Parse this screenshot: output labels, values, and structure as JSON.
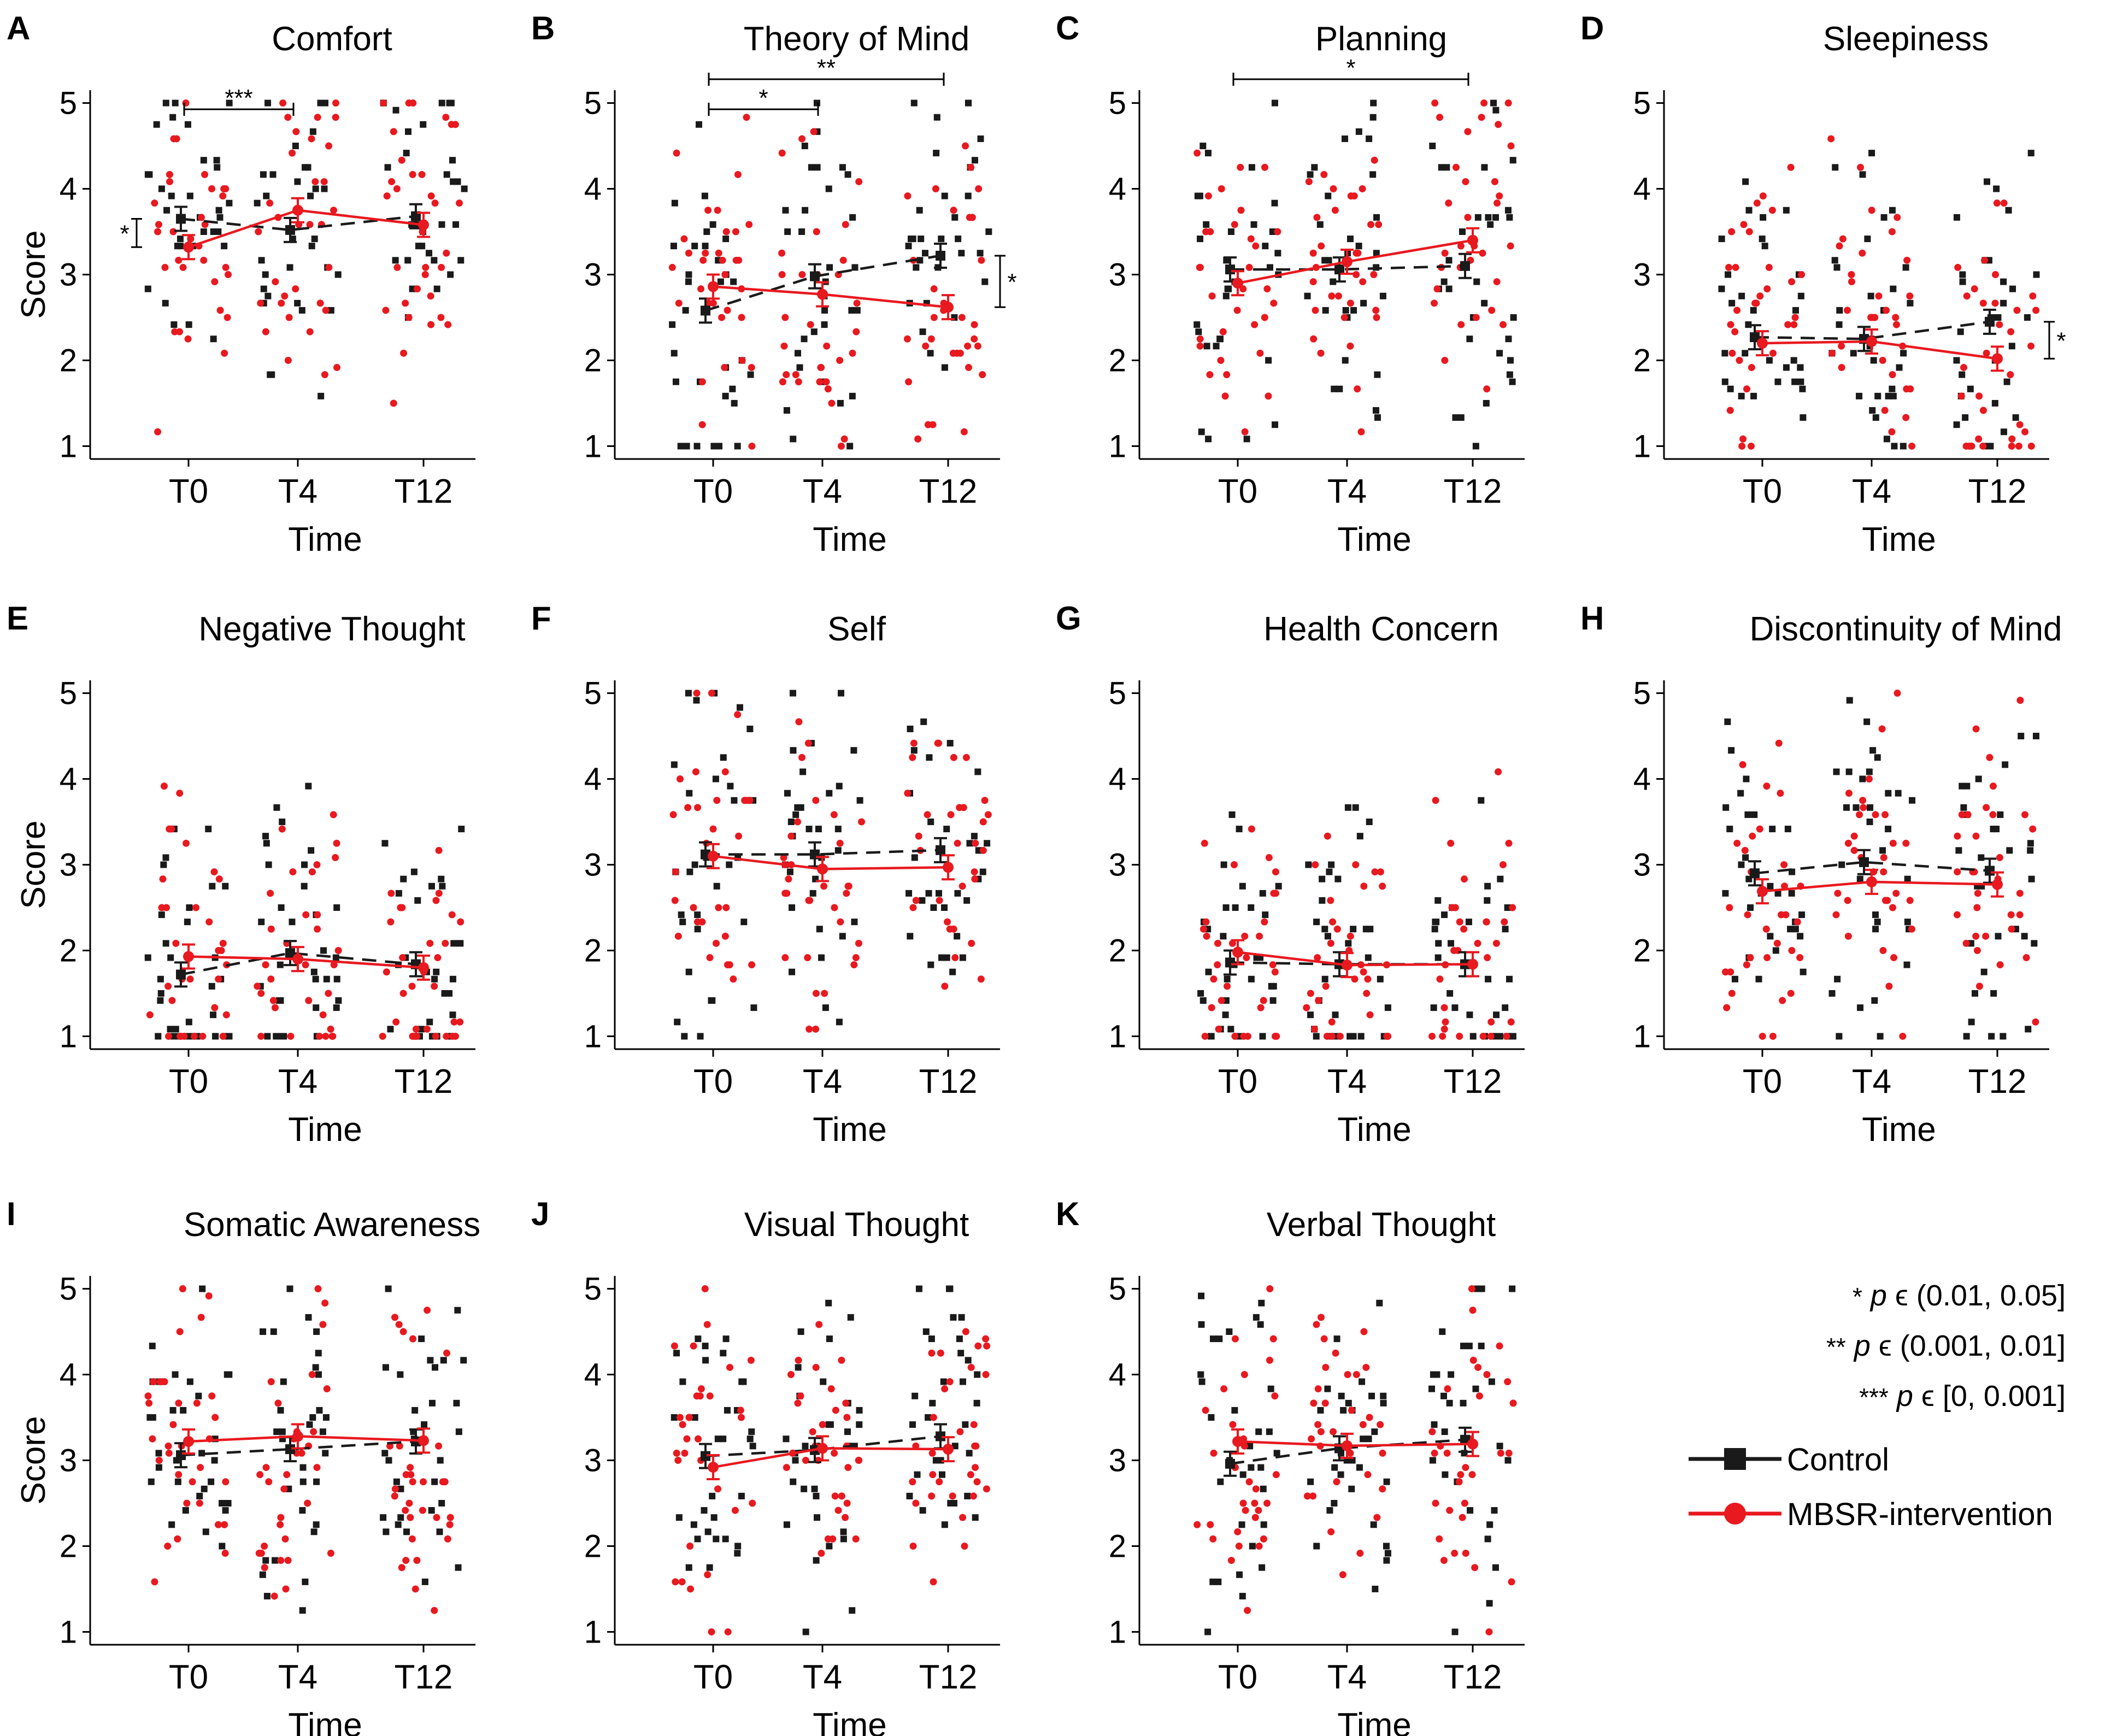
{
  "figure": {
    "shared": {
      "x_axis_title": "Time",
      "y_axis_title": "Score",
      "time_points": [
        "T0",
        "T4",
        "T12"
      ],
      "y_ticks": [
        "1",
        "2",
        "3",
        "4",
        "5"
      ],
      "ylim": [
        0.85,
        5.15
      ]
    },
    "legend": {
      "significance": [
        {
          "stars": "*",
          "p": "p",
          "range": " ϵ (0.01, 0.05]"
        },
        {
          "stars": "**",
          "p": "p",
          "range": " ϵ (0.001, 0.01]"
        },
        {
          "stars": "***",
          "p": "p",
          "range": " ϵ [0, 0.001]"
        }
      ],
      "series": [
        {
          "name": "Control",
          "color": "#1a1a1a"
        },
        {
          "name": "MBSR-intervention",
          "color": "#e8191f"
        }
      ]
    }
  },
  "chart_data": [
    {
      "panel": "A",
      "type": "line",
      "title": "Comfort",
      "categories": [
        "T0",
        "T4",
        "T12"
      ],
      "series": [
        {
          "name": "Control",
          "values": [
            3.65,
            3.52,
            3.68
          ]
        },
        {
          "name": "MBSR-intervention",
          "values": [
            3.32,
            3.75,
            3.58
          ]
        }
      ],
      "show_ylabel": true,
      "brackets": [
        {
          "from": "T0",
          "to": "T4",
          "level": 0,
          "label": "***"
        }
      ],
      "group_diff": [
        {
          "at": "T0",
          "side": "left",
          "low": 3.32,
          "high": 3.65,
          "label": "*"
        }
      ]
    },
    {
      "panel": "B",
      "type": "line",
      "title": "Theory of Mind",
      "categories": [
        "T0",
        "T4",
        "T12"
      ],
      "series": [
        {
          "name": "Control",
          "values": [
            2.58,
            2.98,
            3.22
          ]
        },
        {
          "name": "MBSR-intervention",
          "values": [
            2.86,
            2.77,
            2.62
          ]
        }
      ],
      "show_ylabel": false,
      "brackets": [
        {
          "from": "T0",
          "to": "T4",
          "level": 0,
          "label": "*"
        },
        {
          "from": "T0",
          "to": "T12",
          "level": 1,
          "label": "**"
        }
      ],
      "group_diff": [
        {
          "at": "T12",
          "side": "right",
          "low": 2.62,
          "high": 3.22,
          "label": "*"
        }
      ]
    },
    {
      "panel": "C",
      "type": "line",
      "title": "Planning",
      "categories": [
        "T0",
        "T4",
        "T12"
      ],
      "series": [
        {
          "name": "Control",
          "values": [
            3.06,
            3.06,
            3.1
          ]
        },
        {
          "name": "MBSR-intervention",
          "values": [
            2.9,
            3.15,
            3.4
          ]
        }
      ],
      "show_ylabel": false,
      "brackets": [
        {
          "from": "T0",
          "to": "T12",
          "level": 1,
          "label": "*"
        }
      ],
      "group_diff": []
    },
    {
      "panel": "D",
      "type": "line",
      "title": "Sleepiness",
      "categories": [
        "T0",
        "T4",
        "T12"
      ],
      "series": [
        {
          "name": "Control",
          "values": [
            2.27,
            2.25,
            2.45
          ]
        },
        {
          "name": "MBSR-intervention",
          "values": [
            2.2,
            2.22,
            2.02
          ]
        }
      ],
      "show_ylabel": false,
      "brackets": [],
      "group_diff": [
        {
          "at": "T12",
          "side": "right",
          "low": 2.02,
          "high": 2.45,
          "label": "*"
        }
      ]
    },
    {
      "panel": "E",
      "type": "line",
      "title": "Negative Thought",
      "categories": [
        "T0",
        "T4",
        "T12"
      ],
      "series": [
        {
          "name": "Control",
          "values": [
            1.72,
            1.97,
            1.84
          ]
        },
        {
          "name": "MBSR-intervention",
          "values": [
            1.93,
            1.9,
            1.8
          ]
        }
      ],
      "show_ylabel": true,
      "brackets": [],
      "group_diff": []
    },
    {
      "panel": "F",
      "type": "line",
      "title": "Self",
      "categories": [
        "T0",
        "T4",
        "T12"
      ],
      "series": [
        {
          "name": "Control",
          "values": [
            3.12,
            3.12,
            3.17
          ]
        },
        {
          "name": "MBSR-intervention",
          "values": [
            3.1,
            2.95,
            2.97
          ]
        }
      ],
      "show_ylabel": false,
      "brackets": [],
      "group_diff": []
    },
    {
      "panel": "G",
      "type": "line",
      "title": "Health Concern",
      "categories": [
        "T0",
        "T4",
        "T12"
      ],
      "series": [
        {
          "name": "Control",
          "values": [
            1.86,
            1.84,
            1.84
          ]
        },
        {
          "name": "MBSR-intervention",
          "values": [
            1.98,
            1.83,
            1.84
          ]
        }
      ],
      "show_ylabel": false,
      "brackets": [],
      "group_diff": []
    },
    {
      "panel": "H",
      "type": "line",
      "title": "Discontinuity of Mind",
      "categories": [
        "T0",
        "T4",
        "T12"
      ],
      "series": [
        {
          "name": "Control",
          "values": [
            2.9,
            3.03,
            2.93
          ]
        },
        {
          "name": "MBSR-intervention",
          "values": [
            2.69,
            2.8,
            2.77
          ]
        }
      ],
      "show_ylabel": false,
      "brackets": [],
      "group_diff": []
    },
    {
      "panel": "I",
      "type": "line",
      "title": "Somatic Awareness",
      "categories": [
        "T0",
        "T4",
        "T12"
      ],
      "series": [
        {
          "name": "Control",
          "values": [
            3.06,
            3.13,
            3.22
          ]
        },
        {
          "name": "MBSR-intervention",
          "values": [
            3.22,
            3.28,
            3.23
          ]
        }
      ],
      "show_ylabel": true,
      "brackets": [],
      "group_diff": []
    },
    {
      "panel": "J",
      "type": "line",
      "title": "Visual Thought",
      "categories": [
        "T0",
        "T4",
        "T12"
      ],
      "series": [
        {
          "name": "Control",
          "values": [
            3.05,
            3.12,
            3.28
          ]
        },
        {
          "name": "MBSR-intervention",
          "values": [
            2.92,
            3.14,
            3.13
          ]
        }
      ],
      "show_ylabel": false,
      "brackets": [],
      "group_diff": []
    },
    {
      "panel": "K",
      "type": "line",
      "title": "Verbal Thought",
      "categories": [
        "T0",
        "T4",
        "T12"
      ],
      "series": [
        {
          "name": "Control",
          "values": [
            2.96,
            3.14,
            3.24
          ]
        },
        {
          "name": "MBSR-intervention",
          "values": [
            3.22,
            3.17,
            3.19
          ]
        }
      ],
      "show_ylabel": false,
      "brackets": [],
      "group_diff": []
    }
  ]
}
